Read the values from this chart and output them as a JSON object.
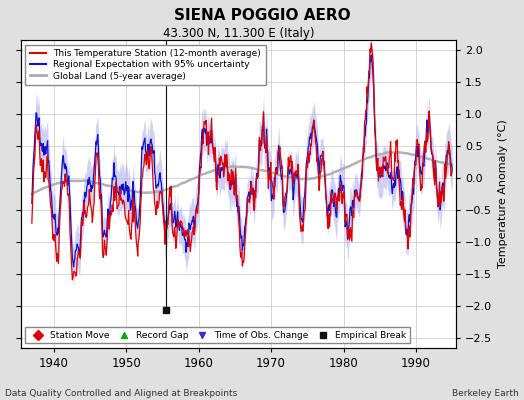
{
  "title": "SIENA POGGIO AERO",
  "subtitle": "43.300 N, 11.300 E (Italy)",
  "xlabel_note": "Data Quality Controlled and Aligned at Breakpoints",
  "xlabel_right": "Berkeley Earth",
  "ylabel": "Temperature Anomaly (°C)",
  "xlim": [
    1935.5,
    1995.5
  ],
  "ylim": [
    -2.65,
    2.15
  ],
  "yticks": [
    -2.5,
    -2,
    -1.5,
    -1,
    -0.5,
    0,
    0.5,
    1,
    1.5,
    2
  ],
  "xticks": [
    1940,
    1950,
    1960,
    1970,
    1980,
    1990
  ],
  "bg_color": "#e0e0e0",
  "plot_bg_color": "#ffffff",
  "grid_color": "#c8c8c8",
  "red_color": "#dd0000",
  "blue_color": "#1111cc",
  "band_color": "#aaaaee",
  "gray_color": "#aaaaaa",
  "legend_labels": [
    "This Temperature Station (12-month average)",
    "Regional Expectation with 95% uncertainty",
    "Global Land (5-year average)"
  ],
  "marker_labels": [
    "Station Move",
    "Record Gap",
    "Time of Obs. Change",
    "Empirical Break"
  ],
  "marker_colors": [
    "#dd0000",
    "#00aa00",
    "#3333cc",
    "#111111"
  ],
  "marker_shapes": [
    "D",
    "^",
    "v",
    "s"
  ],
  "empirical_break_x": 1955.5,
  "empirical_break_y": -2.05
}
